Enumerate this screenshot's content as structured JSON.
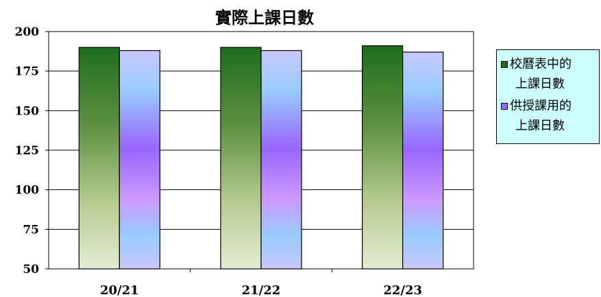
{
  "chart_data": {
    "type": "bar",
    "title": "實際上課日數",
    "categories": [
      "20/21",
      "21/22",
      "22/23"
    ],
    "series": [
      {
        "name": "校曆表中的上課日數",
        "values": [
          190,
          190,
          191
        ]
      },
      {
        "name": "供授課用的上課日數",
        "values": [
          188,
          188,
          187
        ]
      }
    ],
    "ylim": [
      50,
      200
    ],
    "yticks": [
      "50",
      "75",
      "100",
      "125",
      "150",
      "175",
      "200"
    ],
    "grid": true,
    "legend_position": "right"
  },
  "colors": {
    "series1_top": "#1e6e1e",
    "series1_bottom": "#e2ecd2",
    "series2_top": "#c8c8ff",
    "series2_mid": "#9966ff",
    "legend_bg": "#ccffff"
  },
  "legend": {
    "items": [
      {
        "label_line1": "校曆表中的",
        "label_line2": "上課日數"
      },
      {
        "label_line1": "供授課用的",
        "label_line2": "上課日數"
      }
    ]
  }
}
